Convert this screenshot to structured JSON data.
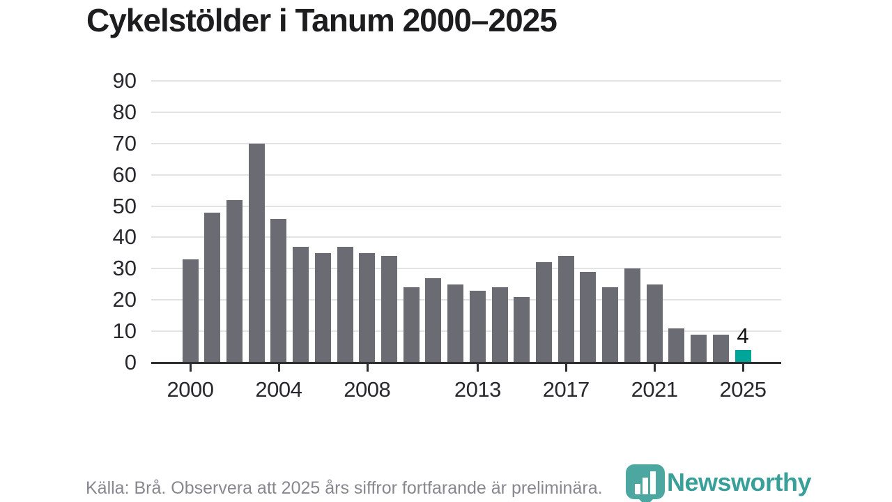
{
  "title": "Cykelstölder i Tanum 2000–2025",
  "colors": {
    "bar": "#6b6b73",
    "bar_highlight": "#00a59a",
    "gridline": "#e3e3e4",
    "axis": "#2e2e31",
    "title_text": "#1d1d1f",
    "tick_label_text": "#28282e",
    "footer_text": "#87878f",
    "logo_teal": "#38a099"
  },
  "chart_data": {
    "type": "bar",
    "title": "Cykelstölder i Tanum 2000–2025",
    "x": [
      2000,
      2001,
      2002,
      2003,
      2004,
      2005,
      2006,
      2007,
      2008,
      2009,
      2010,
      2011,
      2012,
      2013,
      2014,
      2015,
      2016,
      2017,
      2018,
      2019,
      2020,
      2021,
      2022,
      2023,
      2024,
      2025
    ],
    "values": [
      33,
      48,
      52,
      70,
      46,
      37,
      35,
      37,
      35,
      34,
      24,
      27,
      25,
      23,
      24,
      21,
      32,
      34,
      29,
      24,
      30,
      25,
      11,
      9,
      9,
      4
    ],
    "highlight_index": 25,
    "value_labels": [
      {
        "index": 25,
        "text": "4"
      }
    ],
    "xlabel": "",
    "ylabel": "",
    "ylim": [
      0,
      90
    ],
    "yticks": [
      0,
      10,
      20,
      30,
      40,
      50,
      60,
      70,
      80,
      90
    ],
    "xticks": [
      2000,
      2004,
      2008,
      2013,
      2017,
      2021,
      2025
    ],
    "grid": true,
    "legend": "none"
  },
  "footer": {
    "source_text": "Källa: Brå. Observera att 2025 års siffror fortfarande är preliminära.",
    "logo_text": "Newsworthy"
  }
}
